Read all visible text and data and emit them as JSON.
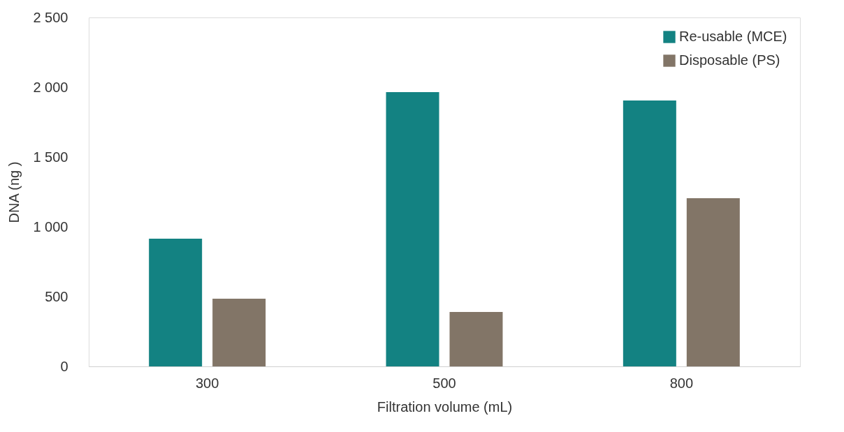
{
  "chart_data": {
    "type": "bar",
    "xlabel": "Filtration volume (mL)",
    "ylabel": "DNA  (ng )",
    "categories": [
      "300",
      "500",
      "800"
    ],
    "series": [
      {
        "name": "Re-usable (MCE)",
        "color": "#138282",
        "values": [
          915,
          1965,
          1905
        ]
      },
      {
        "name": "Disposable (PS)",
        "color": "#827567",
        "values": [
          485,
          390,
          1205
        ]
      }
    ],
    "ylim": [
      0,
      2500
    ],
    "yticks": [
      0,
      500,
      {
        "value": 1000,
        "label": "1 000"
      },
      {
        "value": 1500,
        "label": "1 500"
      },
      {
        "value": 2000,
        "label": "2 000"
      },
      {
        "value": 2500,
        "label": "2 500"
      }
    ],
    "grid": false,
    "legend": "top right"
  }
}
